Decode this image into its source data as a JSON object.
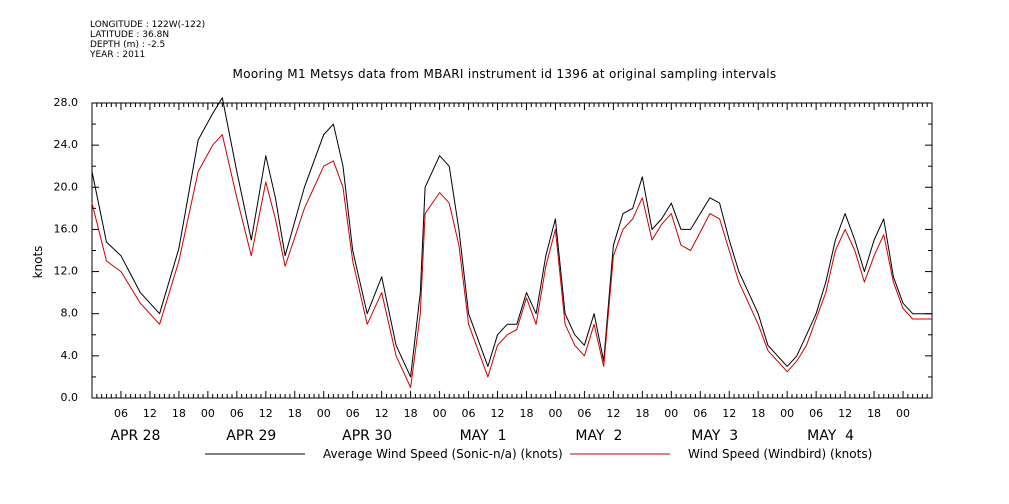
{
  "meta_lines": [
    "LONGITUDE : 122W(-122)",
    "LATITUDE : 36.8N",
    "DEPTH (m) : -2.5",
    "YEAR : 2011"
  ],
  "chart_data": {
    "type": "line",
    "title": "Mooring M1 Metsys data from MBARI instrument id 1396 at original sampling intervals",
    "ylabel": "knots",
    "ylim": [
      0,
      28
    ],
    "xlim_hours": [
      0,
      174
    ],
    "y_ticks": [
      "0.0",
      "4.0",
      "8.0",
      "12.0",
      "16.0",
      "20.0",
      "24.0",
      "28.0"
    ],
    "x_hour_labels": [
      "06",
      "12",
      "18",
      "00",
      "06",
      "12",
      "18",
      "00",
      "06",
      "12",
      "18",
      "00",
      "06",
      "12",
      "18",
      "00",
      "06",
      "12",
      "18",
      "00",
      "06",
      "12",
      "18",
      "00",
      "06",
      "12",
      "18",
      "00"
    ],
    "x_hour_values": [
      6,
      12,
      18,
      24,
      30,
      36,
      42,
      48,
      54,
      60,
      66,
      72,
      78,
      84,
      90,
      96,
      102,
      108,
      114,
      120,
      126,
      132,
      138,
      144,
      150,
      156,
      162,
      168
    ],
    "date_labels": [
      "APR 28",
      "APR 29",
      "APR 30",
      "MAY  1",
      "MAY  2",
      "MAY  3",
      "MAY  4"
    ],
    "date_centers_hours": [
      9,
      33,
      57,
      81,
      105,
      129,
      153
    ],
    "series": [
      {
        "name": "Average Wind Speed (Sonic-n/a) (knots)",
        "color": "#000000",
        "x": [
          0,
          3,
          6,
          10,
          14,
          18,
          22,
          25,
          27,
          30,
          33,
          36,
          38,
          40,
          44,
          48,
          50,
          52,
          54,
          57,
          60,
          63,
          66,
          68,
          69,
          72,
          74,
          76,
          78,
          82,
          84,
          86,
          88,
          90,
          92,
          94,
          96,
          98,
          100,
          102,
          104,
          106,
          108,
          110,
          112,
          114,
          116,
          118,
          120,
          122,
          124,
          128,
          130,
          132,
          134,
          138,
          140,
          144,
          146,
          148,
          150,
          152,
          154,
          156,
          158,
          160,
          162,
          164,
          166,
          168,
          170,
          172,
          174
        ],
        "y": [
          21.5,
          14.8,
          13.5,
          10.0,
          8.0,
          14.2,
          24.5,
          27.0,
          28.5,
          21.5,
          15.0,
          23.0,
          19.0,
          13.5,
          20.0,
          25.0,
          26.0,
          22.0,
          14.0,
          8.0,
          11.5,
          5.0,
          2.0,
          10.0,
          20.0,
          23.0,
          22.0,
          16.0,
          8.0,
          3.0,
          6.0,
          7.0,
          7.0,
          10.0,
          8.0,
          13.5,
          17.0,
          8.0,
          6.0,
          5.0,
          8.0,
          3.5,
          14.5,
          17.5,
          18.0,
          21.0,
          16.0,
          17.0,
          18.5,
          16.0,
          16.0,
          19.0,
          18.5,
          15.0,
          12.0,
          8.0,
          5.0,
          3.0,
          4.0,
          6.0,
          8.0,
          11.0,
          15.0,
          17.5,
          15.0,
          12.0,
          15.0,
          17.0,
          11.5,
          9.0,
          8.0,
          8.0,
          8.0
        ]
      },
      {
        "name": "Wind Speed (Windbird) (knots)",
        "color": "#cc0000",
        "x": [
          0,
          3,
          6,
          10,
          14,
          18,
          22,
          25,
          27,
          30,
          33,
          36,
          38,
          40,
          44,
          48,
          50,
          52,
          54,
          57,
          60,
          63,
          66,
          68,
          69,
          72,
          74,
          76,
          78,
          82,
          84,
          86,
          88,
          90,
          92,
          94,
          96,
          98,
          100,
          102,
          104,
          106,
          108,
          110,
          112,
          114,
          116,
          118,
          120,
          122,
          124,
          128,
          130,
          132,
          134,
          138,
          140,
          144,
          146,
          148,
          150,
          152,
          154,
          156,
          158,
          160,
          162,
          164,
          166,
          168,
          170,
          172,
          174
        ],
        "y": [
          18.5,
          13.0,
          12.0,
          9.0,
          7.0,
          13.0,
          21.5,
          24.0,
          25.0,
          19.0,
          13.5,
          20.5,
          17.0,
          12.5,
          18.0,
          22.0,
          22.5,
          20.0,
          13.0,
          7.0,
          10.0,
          4.0,
          1.0,
          8.0,
          17.5,
          19.5,
          18.5,
          14.5,
          7.0,
          2.0,
          5.0,
          6.0,
          6.5,
          9.5,
          7.0,
          12.5,
          16.0,
          7.0,
          5.0,
          4.0,
          7.0,
          3.0,
          13.5,
          16.0,
          17.0,
          19.0,
          15.0,
          16.5,
          17.5,
          14.5,
          14.0,
          17.5,
          17.0,
          14.0,
          11.0,
          7.0,
          4.5,
          2.5,
          3.5,
          5.0,
          7.5,
          10.0,
          14.0,
          16.0,
          14.0,
          11.0,
          13.5,
          15.5,
          11.0,
          8.5,
          7.5,
          7.5,
          7.5
        ]
      }
    ],
    "legend_placement": "bottom"
  }
}
